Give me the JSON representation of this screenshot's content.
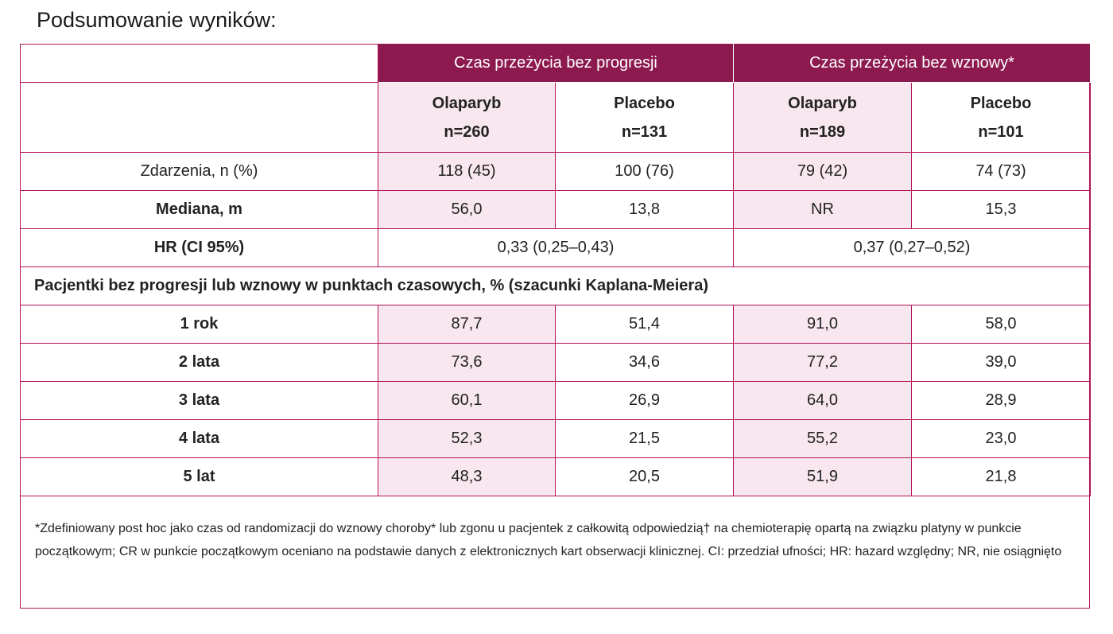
{
  "title": "Podsumowanie wyników:",
  "groups": {
    "pfs": "Czas przeżycia bez progresji",
    "rfs": "Czas przeżycia bez wznowy*"
  },
  "arms": [
    {
      "name": "Olaparyb",
      "n": "n=260"
    },
    {
      "name": "Placebo",
      "n": "n=131"
    },
    {
      "name": "Olaparyb",
      "n": "n=189"
    },
    {
      "name": "Placebo",
      "n": "n=101"
    }
  ],
  "rows": {
    "events": {
      "label": "Zdarzenia, n (%)",
      "values": [
        "118 (45)",
        "100 (76)",
        "79 (42)",
        "74 (73)"
      ]
    },
    "median": {
      "label": "Mediana, m",
      "values": [
        "56,0",
        "13,8",
        "NR",
        "15,3"
      ]
    },
    "hr": {
      "label": "HR (CI 95%)",
      "pfs": "0,33 (0,25–0,43)",
      "rfs": "0,37 (0,27–0,52)"
    }
  },
  "section_label": "Pacjentki bez progresji lub wznowy w punktach czasowych, % (szacunki Kaplana-Meiera)",
  "timepoints": [
    {
      "label": "1 rok",
      "values": [
        "87,7",
        "51,4",
        "91,0",
        "58,0"
      ]
    },
    {
      "label": "2 lata",
      "values": [
        "73,6",
        "34,6",
        "77,2",
        "39,0"
      ]
    },
    {
      "label": "3 lata",
      "values": [
        "60,1",
        "26,9",
        "64,0",
        "28,9"
      ]
    },
    {
      "label": "4 lata",
      "values": [
        "52,3",
        "21,5",
        "55,2",
        "23,0"
      ]
    },
    {
      "label": "5 lat",
      "values": [
        "48,3",
        "20,5",
        "51,9",
        "21,8"
      ]
    }
  ],
  "footnote": "*Zdefiniowany post hoc jako czas od randomizacji do wznowy choroby* lub zgonu u pacjentek z całkowitą odpowiedzią† na chemioterapię opartą na związku platyny w punkcie początkowym; CR w punkcie początkowym oceniano na podstawie danych z elektronicznych kart obserwacji klinicznej. CI: przedział ufności; HR: hazard względny; NR, nie osiągnięto",
  "colors": {
    "header": "#8d1a4f",
    "border": "#b3125a",
    "highlight": "#f8e7ef"
  }
}
